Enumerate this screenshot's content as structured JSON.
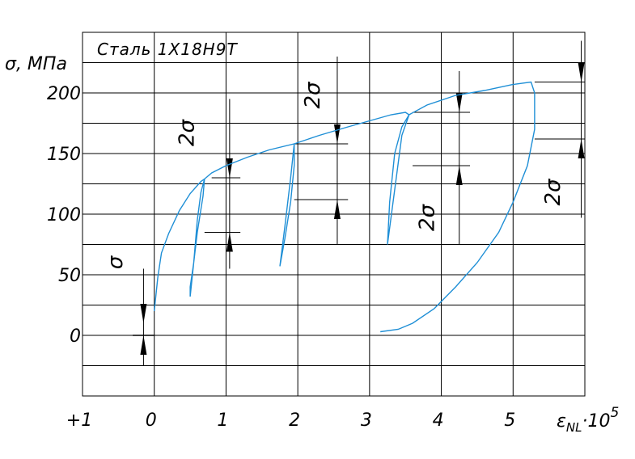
{
  "chart_data": {
    "type": "line",
    "title": "Сталь  1Х18Н9Т",
    "ylabel": "σ,   МПа",
    "xlabel_main": "ε",
    "xlabel_sub": "NL",
    "xlabel_suffix": "·10",
    "xlabel_exp": "5",
    "ylim": [
      -50,
      250
    ],
    "xlim": [
      -1,
      6
    ],
    "grid": true,
    "y_ticks": [
      {
        "value": 200,
        "label": "200"
      },
      {
        "value": 150,
        "label": "150"
      },
      {
        "value": 100,
        "label": "100"
      },
      {
        "value": 50,
        "label": "50"
      },
      {
        "value": 0,
        "label": "0"
      }
    ],
    "x_ticks": [
      {
        "value": -1,
        "label": "+1"
      },
      {
        "value": 0,
        "label": "0"
      },
      {
        "value": 1,
        "label": "1"
      },
      {
        "value": 2,
        "label": "2"
      },
      {
        "value": 3,
        "label": "3"
      },
      {
        "value": 4,
        "label": "4"
      },
      {
        "value": 5,
        "label": "5"
      }
    ],
    "annotations": [
      {
        "text": "σ",
        "x": -0.45,
        "y": 60
      },
      {
        "text": "2σ",
        "x": 0.55,
        "y": 167
      },
      {
        "text": "2σ",
        "x": 2.3,
        "y": 198
      },
      {
        "text": "2σ",
        "x": 3.9,
        "y": 97
      },
      {
        "text": "2σ",
        "x": 5.65,
        "y": 118
      }
    ],
    "series": [
      {
        "color": "#1f8fd6",
        "points": [
          [
            0.0,
            20
          ],
          [
            0.05,
            48
          ],
          [
            0.1,
            68
          ],
          [
            0.2,
            84
          ],
          [
            0.35,
            103
          ],
          [
            0.5,
            117
          ],
          [
            0.65,
            127
          ],
          [
            0.7,
            129
          ],
          [
            0.68,
            115
          ],
          [
            0.6,
            85
          ],
          [
            0.55,
            60
          ],
          [
            0.5,
            40
          ],
          [
            0.5,
            32
          ],
          [
            0.55,
            60
          ],
          [
            0.6,
            95
          ],
          [
            0.65,
            118
          ],
          [
            0.7,
            129
          ],
          [
            0.8,
            134
          ],
          [
            1.0,
            140
          ],
          [
            1.3,
            147
          ],
          [
            1.6,
            153
          ],
          [
            1.95,
            158
          ],
          [
            1.95,
            140
          ],
          [
            1.9,
            110
          ],
          [
            1.82,
            80
          ],
          [
            1.75,
            57
          ],
          [
            1.82,
            90
          ],
          [
            1.9,
            130
          ],
          [
            1.95,
            158
          ],
          [
            2.3,
            165
          ],
          [
            2.7,
            172
          ],
          [
            3.0,
            177
          ],
          [
            3.3,
            182
          ],
          [
            3.5,
            184
          ],
          [
            3.55,
            182
          ],
          [
            3.45,
            172
          ],
          [
            3.35,
            150
          ],
          [
            3.28,
            110
          ],
          [
            3.25,
            75
          ],
          [
            3.35,
            120
          ],
          [
            3.45,
            165
          ],
          [
            3.55,
            182
          ],
          [
            3.8,
            190
          ],
          [
            4.2,
            198
          ],
          [
            4.6,
            202
          ],
          [
            5.0,
            207
          ],
          [
            5.25,
            209
          ],
          [
            5.3,
            200
          ],
          [
            5.3,
            170
          ],
          [
            5.2,
            140
          ],
          [
            5.0,
            110
          ],
          [
            4.8,
            85
          ],
          [
            4.5,
            60
          ],
          [
            4.2,
            40
          ],
          [
            3.9,
            22
          ],
          [
            3.6,
            10
          ],
          [
            3.4,
            5
          ],
          [
            3.15,
            3
          ]
        ]
      }
    ],
    "dimensions": [
      {
        "x": -0.15,
        "y_bottom": -25,
        "y_top": 55,
        "bar_from": -0.3,
        "bar_to": 0.0
      },
      {
        "x": 1.05,
        "y_bottom": 55,
        "y_top": 195,
        "ext_low": [
          0.7,
          1.2,
          85
        ],
        "ext_high": [
          0.8,
          1.2,
          130
        ]
      },
      {
        "x": 2.55,
        "y_bottom": 75,
        "y_top": 230,
        "ext_low": [
          1.95,
          2.7,
          112
        ],
        "ext_high": [
          1.95,
          2.7,
          158
        ]
      },
      {
        "x": 4.25,
        "y_bottom": 75,
        "y_top": 218,
        "ext_low": [
          3.6,
          4.4,
          140
        ],
        "ext_high": [
          3.6,
          4.4,
          184
        ]
      },
      {
        "x": 5.95,
        "y_bottom": 97,
        "y_top": 243,
        "ext_low": [
          5.3,
          6.0,
          162
        ],
        "ext_high": [
          5.3,
          6.0,
          209
        ]
      }
    ]
  }
}
